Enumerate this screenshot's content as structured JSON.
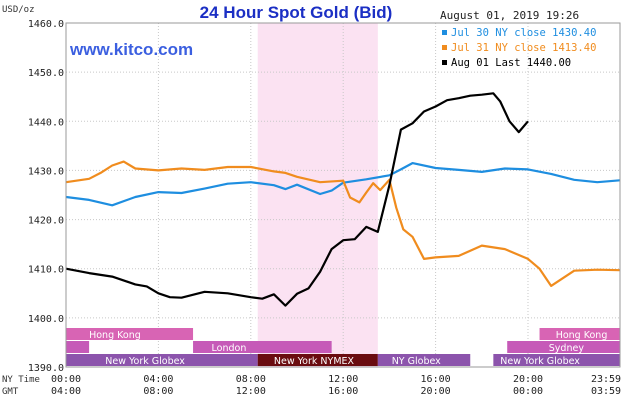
{
  "chart_data": {
    "type": "line",
    "title": "24 Hour Spot Gold (Bid)",
    "ylabel": "USD/oz",
    "date_label": "August 01, 2019 19:26",
    "website": "www.kitco.com",
    "ylim": [
      1390,
      1460
    ],
    "yticks": [
      "1460.0",
      "1450.0",
      "1440.0",
      "1430.0",
      "1420.0",
      "1410.0",
      "1400.0",
      "1390.0"
    ],
    "xlim_hours": [
      0,
      23.983
    ],
    "xticks_ny": [
      "00:00",
      "04:00",
      "08:00",
      "12:00",
      "16:00",
      "20:00",
      "23:59"
    ],
    "xticks_gmt": [
      "04:00",
      "08:00",
      "12:00",
      "16:00",
      "20:00",
      "00:00",
      "03:59"
    ],
    "xaxis_row_labels": [
      "NY Time",
      "GMT"
    ],
    "highlight_window_hours": [
      8.3,
      13.5
    ],
    "series": [
      {
        "name": "Jul 30 NY close 1430.40",
        "color": "#1e8ee0",
        "points": [
          [
            0,
            1424.6
          ],
          [
            1,
            1424.0
          ],
          [
            2,
            1422.9
          ],
          [
            3,
            1424.6
          ],
          [
            4,
            1425.6
          ],
          [
            5,
            1425.4
          ],
          [
            6,
            1426.3
          ],
          [
            7,
            1427.3
          ],
          [
            8,
            1427.6
          ],
          [
            9,
            1427.0
          ],
          [
            9.5,
            1426.2
          ],
          [
            10,
            1427.1
          ],
          [
            11,
            1425.2
          ],
          [
            11.5,
            1425.9
          ],
          [
            12,
            1427.5
          ],
          [
            13,
            1428.2
          ],
          [
            14,
            1429.0
          ],
          [
            14.5,
            1430.2
          ],
          [
            15,
            1431.5
          ],
          [
            16,
            1430.5
          ],
          [
            17,
            1430.1
          ],
          [
            18,
            1429.7
          ],
          [
            19,
            1430.4
          ],
          [
            20,
            1430.2
          ],
          [
            21,
            1429.3
          ],
          [
            22,
            1428.1
          ],
          [
            23,
            1427.6
          ],
          [
            23.98,
            1428.0
          ]
        ]
      },
      {
        "name": "Jul 31 NY close 1413.40",
        "color": "#f08c1e",
        "points": [
          [
            0,
            1427.6
          ],
          [
            1,
            1428.3
          ],
          [
            1.5,
            1429.5
          ],
          [
            2,
            1431.0
          ],
          [
            2.5,
            1431.8
          ],
          [
            3,
            1430.4
          ],
          [
            4,
            1430.0
          ],
          [
            5,
            1430.4
          ],
          [
            6,
            1430.1
          ],
          [
            7,
            1430.7
          ],
          [
            8,
            1430.7
          ],
          [
            9,
            1429.8
          ],
          [
            9.5,
            1429.5
          ],
          [
            10,
            1428.7
          ],
          [
            11,
            1427.6
          ],
          [
            12,
            1427.9
          ],
          [
            12.3,
            1424.5
          ],
          [
            12.7,
            1423.5
          ],
          [
            13,
            1425.5
          ],
          [
            13.3,
            1427.4
          ],
          [
            13.6,
            1426.0
          ],
          [
            14,
            1428.1
          ],
          [
            14.3,
            1422.4
          ],
          [
            14.6,
            1418.0
          ],
          [
            15,
            1416.5
          ],
          [
            15.5,
            1412.0
          ],
          [
            16,
            1412.3
          ],
          [
            17,
            1412.6
          ],
          [
            18,
            1414.7
          ],
          [
            19,
            1414.0
          ],
          [
            20,
            1412.0
          ],
          [
            20.5,
            1410.0
          ],
          [
            21,
            1406.5
          ],
          [
            22,
            1409.6
          ],
          [
            23,
            1409.8
          ],
          [
            23.98,
            1409.7
          ]
        ]
      },
      {
        "name": "Aug 01 Last 1440.00",
        "color": "#000000",
        "points": [
          [
            0,
            1410.0
          ],
          [
            1,
            1409.1
          ],
          [
            2,
            1408.4
          ],
          [
            3,
            1406.8
          ],
          [
            3.5,
            1406.4
          ],
          [
            4,
            1405.0
          ],
          [
            4.5,
            1404.2
          ],
          [
            5,
            1404.1
          ],
          [
            6,
            1405.3
          ],
          [
            7,
            1405.0
          ],
          [
            8,
            1404.2
          ],
          [
            8.5,
            1403.9
          ],
          [
            9,
            1404.8
          ],
          [
            9.5,
            1402.5
          ],
          [
            10,
            1404.9
          ],
          [
            10.5,
            1406.0
          ],
          [
            11,
            1409.4
          ],
          [
            11.5,
            1414.0
          ],
          [
            12,
            1415.8
          ],
          [
            12.5,
            1416.0
          ],
          [
            13,
            1418.5
          ],
          [
            13.5,
            1417.5
          ],
          [
            14,
            1427.0
          ],
          [
            14.5,
            1438.3
          ],
          [
            15,
            1439.6
          ],
          [
            15.5,
            1442.0
          ],
          [
            16,
            1443.0
          ],
          [
            16.5,
            1444.3
          ],
          [
            17,
            1444.7
          ],
          [
            17.5,
            1445.2
          ],
          [
            18,
            1445.4
          ],
          [
            18.5,
            1445.7
          ],
          [
            18.8,
            1444.0
          ],
          [
            19.2,
            1440.0
          ],
          [
            19.6,
            1437.8
          ],
          [
            20.0,
            1440.0
          ]
        ]
      }
    ],
    "market_rows": [
      {
        "color": "#d864b4",
        "segments": [
          {
            "start": 0,
            "end": 5.5,
            "label": "Hong Kong",
            "label_at": 1
          },
          {
            "start": 20.5,
            "end": 23.98,
            "label": "Hong Kong",
            "label_at": 21.2
          }
        ]
      },
      {
        "color": "#c65ab8",
        "segments": [
          {
            "start": 0,
            "end": 1,
            "label": ""
          },
          {
            "start": 5.5,
            "end": 11.5,
            "label": "London",
            "label_at": 6.3
          },
          {
            "start": 19.1,
            "end": 23.98,
            "label": "Sydney",
            "label_at": 20.9
          }
        ]
      },
      {
        "color": "#8c54ac",
        "segments": [
          {
            "start": 0,
            "end": 8.3,
            "label": "New York Globex",
            "label_at": 1.7
          },
          {
            "start": 8.3,
            "end": 13.5,
            "label": "New York NYMEX",
            "label_at": 9.0,
            "color": "#6a0c10"
          },
          {
            "start": 13.5,
            "end": 17.5,
            "label": "NY Globex",
            "label_at": 14.1
          },
          {
            "start": 18.5,
            "end": 23.98,
            "label": "New York Globex",
            "label_at": 18.8
          }
        ]
      }
    ]
  }
}
